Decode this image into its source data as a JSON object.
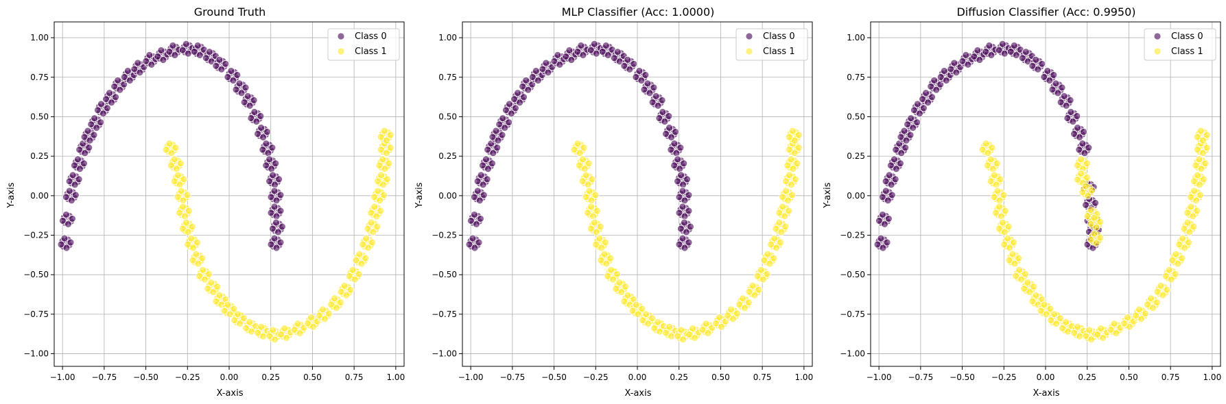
{
  "chart_data": [
    {
      "type": "scatter",
      "title": "Ground Truth",
      "xlabel": "X-axis",
      "ylabel": "Y-axis",
      "xlim": [
        -1.05,
        1.05
      ],
      "ylim": [
        -1.08,
        1.1
      ],
      "xticks": [
        -1.0,
        -0.75,
        -0.5,
        -0.25,
        0.0,
        0.25,
        0.5,
        0.75,
        1.0
      ],
      "xtick_labels": [
        "−1.00",
        "−0.75",
        "−0.50",
        "−0.25",
        "0.00",
        "0.25",
        "0.50",
        "0.75",
        "1.00"
      ],
      "yticks": [
        -1.0,
        -0.75,
        -0.5,
        -0.25,
        0.0,
        0.25,
        0.5,
        0.75,
        1.0
      ],
      "ytick_labels": [
        "−1.00",
        "−0.75",
        "−0.50",
        "−0.25",
        "0.00",
        "0.25",
        "0.50",
        "0.75",
        "1.00"
      ],
      "grid": true,
      "legend_position": "top-right",
      "series": [
        {
          "name": "Class 0",
          "color": "#440154",
          "points": [
            [
              -0.98,
              -0.3
            ],
            [
              -0.97,
              -0.15
            ],
            [
              -0.95,
              0.0
            ],
            [
              -0.93,
              0.1
            ],
            [
              -0.9,
              0.2
            ],
            [
              -0.87,
              0.3
            ],
            [
              -0.84,
              0.38
            ],
            [
              -0.8,
              0.46
            ],
            [
              -0.76,
              0.55
            ],
            [
              -0.71,
              0.62
            ],
            [
              -0.66,
              0.7
            ],
            [
              -0.6,
              0.76
            ],
            [
              -0.54,
              0.81
            ],
            [
              -0.47,
              0.86
            ],
            [
              -0.4,
              0.89
            ],
            [
              -0.33,
              0.92
            ],
            [
              -0.25,
              0.93
            ],
            [
              -0.18,
              0.92
            ],
            [
              -0.11,
              0.88
            ],
            [
              -0.05,
              0.83
            ],
            [
              0.02,
              0.76
            ],
            [
              0.07,
              0.68
            ],
            [
              0.12,
              0.6
            ],
            [
              0.16,
              0.5
            ],
            [
              0.2,
              0.4
            ],
            [
              0.23,
              0.3
            ],
            [
              0.25,
              0.2
            ],
            [
              0.27,
              0.1
            ],
            [
              0.28,
              0.0
            ],
            [
              0.28,
              -0.1
            ],
            [
              0.29,
              -0.2
            ],
            [
              0.28,
              -0.3
            ]
          ]
        },
        {
          "name": "Class 1",
          "color": "#fde725",
          "points": [
            [
              -0.35,
              0.3
            ],
            [
              -0.32,
              0.2
            ],
            [
              -0.3,
              0.1
            ],
            [
              -0.28,
              0.0
            ],
            [
              -0.27,
              -0.1
            ],
            [
              -0.25,
              -0.2
            ],
            [
              -0.22,
              -0.3
            ],
            [
              -0.19,
              -0.4
            ],
            [
              -0.15,
              -0.5
            ],
            [
              -0.1,
              -0.58
            ],
            [
              -0.05,
              -0.66
            ],
            [
              0.0,
              -0.72
            ],
            [
              0.06,
              -0.78
            ],
            [
              0.13,
              -0.83
            ],
            [
              0.2,
              -0.86
            ],
            [
              0.27,
              -0.88
            ],
            [
              0.34,
              -0.87
            ],
            [
              0.42,
              -0.84
            ],
            [
              0.5,
              -0.8
            ],
            [
              0.57,
              -0.75
            ],
            [
              0.64,
              -0.68
            ],
            [
              0.7,
              -0.6
            ],
            [
              0.75,
              -0.5
            ],
            [
              0.79,
              -0.4
            ],
            [
              0.83,
              -0.3
            ],
            [
              0.86,
              -0.2
            ],
            [
              0.88,
              -0.1
            ],
            [
              0.9,
              0.0
            ],
            [
              0.92,
              0.1
            ],
            [
              0.93,
              0.2
            ],
            [
              0.94,
              0.3
            ],
            [
              0.94,
              0.38
            ]
          ]
        }
      ]
    },
    {
      "type": "scatter",
      "title": "MLP Classifier (Acc: 1.0000)",
      "xlabel": "X-axis",
      "ylabel": "Y-axis",
      "xlim": [
        -1.05,
        1.05
      ],
      "ylim": [
        -1.08,
        1.1
      ],
      "xticks": [
        -1.0,
        -0.75,
        -0.5,
        -0.25,
        0.0,
        0.25,
        0.5,
        0.75,
        1.0
      ],
      "xtick_labels": [
        "−1.00",
        "−0.75",
        "−0.50",
        "−0.25",
        "0.00",
        "0.25",
        "0.50",
        "0.75",
        "1.00"
      ],
      "yticks": [
        -1.0,
        -0.75,
        -0.5,
        -0.25,
        0.0,
        0.25,
        0.5,
        0.75,
        1.0
      ],
      "ytick_labels": [
        "−1.00",
        "−0.75",
        "−0.50",
        "−0.25",
        "0.00",
        "0.25",
        "0.50",
        "0.75",
        "1.00"
      ],
      "grid": true,
      "legend_position": "top-right",
      "series": [
        {
          "name": "Class 0",
          "color": "#440154",
          "points": [
            [
              -0.98,
              -0.3
            ],
            [
              -0.97,
              -0.15
            ],
            [
              -0.95,
              0.0
            ],
            [
              -0.93,
              0.1
            ],
            [
              -0.9,
              0.2
            ],
            [
              -0.87,
              0.3
            ],
            [
              -0.84,
              0.38
            ],
            [
              -0.8,
              0.46
            ],
            [
              -0.76,
              0.55
            ],
            [
              -0.71,
              0.62
            ],
            [
              -0.66,
              0.7
            ],
            [
              -0.6,
              0.76
            ],
            [
              -0.54,
              0.81
            ],
            [
              -0.47,
              0.86
            ],
            [
              -0.4,
              0.89
            ],
            [
              -0.33,
              0.92
            ],
            [
              -0.25,
              0.93
            ],
            [
              -0.18,
              0.92
            ],
            [
              -0.11,
              0.88
            ],
            [
              -0.05,
              0.83
            ],
            [
              0.02,
              0.76
            ],
            [
              0.07,
              0.68
            ],
            [
              0.12,
              0.6
            ],
            [
              0.16,
              0.5
            ],
            [
              0.2,
              0.4
            ],
            [
              0.23,
              0.3
            ],
            [
              0.25,
              0.2
            ],
            [
              0.27,
              0.1
            ],
            [
              0.28,
              0.0
            ],
            [
              0.28,
              -0.1
            ],
            [
              0.29,
              -0.2
            ],
            [
              0.28,
              -0.3
            ]
          ]
        },
        {
          "name": "Class 1",
          "color": "#fde725",
          "points": [
            [
              -0.35,
              0.3
            ],
            [
              -0.32,
              0.2
            ],
            [
              -0.3,
              0.1
            ],
            [
              -0.28,
              0.0
            ],
            [
              -0.27,
              -0.1
            ],
            [
              -0.25,
              -0.2
            ],
            [
              -0.22,
              -0.3
            ],
            [
              -0.19,
              -0.4
            ],
            [
              -0.15,
              -0.5
            ],
            [
              -0.1,
              -0.58
            ],
            [
              -0.05,
              -0.66
            ],
            [
              0.0,
              -0.72
            ],
            [
              0.06,
              -0.78
            ],
            [
              0.13,
              -0.83
            ],
            [
              0.2,
              -0.86
            ],
            [
              0.27,
              -0.88
            ],
            [
              0.34,
              -0.87
            ],
            [
              0.42,
              -0.84
            ],
            [
              0.5,
              -0.8
            ],
            [
              0.57,
              -0.75
            ],
            [
              0.64,
              -0.68
            ],
            [
              0.7,
              -0.6
            ],
            [
              0.75,
              -0.5
            ],
            [
              0.79,
              -0.4
            ],
            [
              0.83,
              -0.3
            ],
            [
              0.86,
              -0.2
            ],
            [
              0.88,
              -0.1
            ],
            [
              0.9,
              0.0
            ],
            [
              0.92,
              0.1
            ],
            [
              0.93,
              0.2
            ],
            [
              0.94,
              0.3
            ],
            [
              0.94,
              0.38
            ]
          ]
        }
      ]
    },
    {
      "type": "scatter",
      "title": "Diffusion Classifier (Acc: 0.9950)",
      "xlabel": "X-axis",
      "ylabel": "Y-axis",
      "xlim": [
        -1.05,
        1.05
      ],
      "ylim": [
        -1.08,
        1.1
      ],
      "xticks": [
        -1.0,
        -0.75,
        -0.5,
        -0.25,
        0.0,
        0.25,
        0.5,
        0.75,
        1.0
      ],
      "xtick_labels": [
        "−1.00",
        "−0.75",
        "−0.50",
        "−0.25",
        "0.00",
        "0.25",
        "0.50",
        "0.75",
        "1.00"
      ],
      "yticks": [
        -1.0,
        -0.75,
        -0.5,
        -0.25,
        0.0,
        0.25,
        0.5,
        0.75,
        1.0
      ],
      "ytick_labels": [
        "−1.00",
        "−0.75",
        "−0.50",
        "−0.25",
        "0.00",
        "0.25",
        "0.50",
        "0.75",
        "1.00"
      ],
      "grid": true,
      "legend_position": "top-right",
      "series": [
        {
          "name": "Class 0",
          "color": "#440154",
          "points": [
            [
              -0.98,
              -0.3
            ],
            [
              -0.97,
              -0.15
            ],
            [
              -0.95,
              0.0
            ],
            [
              -0.93,
              0.1
            ],
            [
              -0.9,
              0.2
            ],
            [
              -0.87,
              0.3
            ],
            [
              -0.84,
              0.38
            ],
            [
              -0.8,
              0.46
            ],
            [
              -0.76,
              0.55
            ],
            [
              -0.71,
              0.62
            ],
            [
              -0.66,
              0.7
            ],
            [
              -0.6,
              0.76
            ],
            [
              -0.54,
              0.81
            ],
            [
              -0.47,
              0.86
            ],
            [
              -0.4,
              0.89
            ],
            [
              -0.33,
              0.92
            ],
            [
              -0.25,
              0.93
            ],
            [
              -0.18,
              0.92
            ],
            [
              -0.11,
              0.88
            ],
            [
              -0.05,
              0.83
            ],
            [
              0.02,
              0.76
            ],
            [
              0.07,
              0.68
            ],
            [
              0.12,
              0.6
            ],
            [
              0.16,
              0.5
            ],
            [
              0.2,
              0.4
            ],
            [
              0.23,
              0.3
            ],
            [
              0.26,
              0.05
            ],
            [
              0.27,
              -0.05
            ],
            [
              0.28,
              -0.15
            ],
            [
              0.29,
              -0.22
            ],
            [
              0.28,
              -0.3
            ]
          ]
        },
        {
          "name": "Class 1",
          "color": "#fde725",
          "points": [
            [
              0.22,
              0.2
            ],
            [
              0.22,
              0.11
            ],
            [
              0.25,
              0.03
            ],
            [
              0.28,
              -0.12
            ],
            [
              0.3,
              -0.17
            ],
            [
              0.3,
              -0.27
            ],
            [
              -0.35,
              0.3
            ],
            [
              -0.32,
              0.2
            ],
            [
              -0.3,
              0.1
            ],
            [
              -0.28,
              0.0
            ],
            [
              -0.27,
              -0.1
            ],
            [
              -0.25,
              -0.2
            ],
            [
              -0.22,
              -0.3
            ],
            [
              -0.19,
              -0.4
            ],
            [
              -0.15,
              -0.5
            ],
            [
              -0.1,
              -0.58
            ],
            [
              -0.05,
              -0.66
            ],
            [
              0.0,
              -0.72
            ],
            [
              0.06,
              -0.78
            ],
            [
              0.13,
              -0.83
            ],
            [
              0.2,
              -0.86
            ],
            [
              0.27,
              -0.88
            ],
            [
              0.34,
              -0.87
            ],
            [
              0.42,
              -0.84
            ],
            [
              0.5,
              -0.8
            ],
            [
              0.57,
              -0.75
            ],
            [
              0.64,
              -0.68
            ],
            [
              0.7,
              -0.6
            ],
            [
              0.75,
              -0.5
            ],
            [
              0.79,
              -0.4
            ],
            [
              0.83,
              -0.3
            ],
            [
              0.86,
              -0.2
            ],
            [
              0.88,
              -0.1
            ],
            [
              0.9,
              0.0
            ],
            [
              0.92,
              0.1
            ],
            [
              0.93,
              0.2
            ],
            [
              0.94,
              0.3
            ],
            [
              0.94,
              0.38
            ]
          ]
        }
      ]
    }
  ]
}
